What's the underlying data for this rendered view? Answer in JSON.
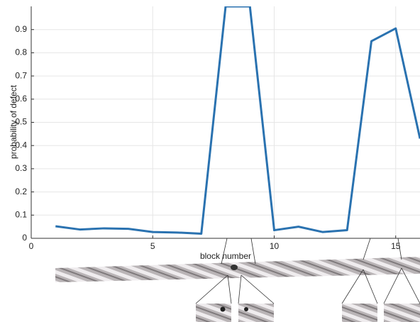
{
  "chart_data": {
    "type": "line",
    "x_label": "block number",
    "y_label": "probability of defect",
    "x": [
      1,
      2,
      3,
      4,
      5,
      6,
      7,
      8,
      9,
      10,
      11,
      12,
      13,
      14,
      15,
      16
    ],
    "values": [
      0.052,
      0.038,
      0.043,
      0.041,
      0.027,
      0.025,
      0.02,
      1.0,
      1.0,
      0.035,
      0.05,
      0.027,
      0.035,
      0.85,
      0.905,
      0.43
    ],
    "color": "#2a72b0",
    "xlim": [
      0,
      16
    ],
    "xticks": [
      0,
      5,
      10,
      15
    ],
    "ylim": [
      0,
      1
    ],
    "yticks": [
      0,
      0.1,
      0.2,
      0.3,
      0.4,
      0.5,
      0.6,
      0.7,
      0.8,
      0.9
    ],
    "grid": true
  }
}
